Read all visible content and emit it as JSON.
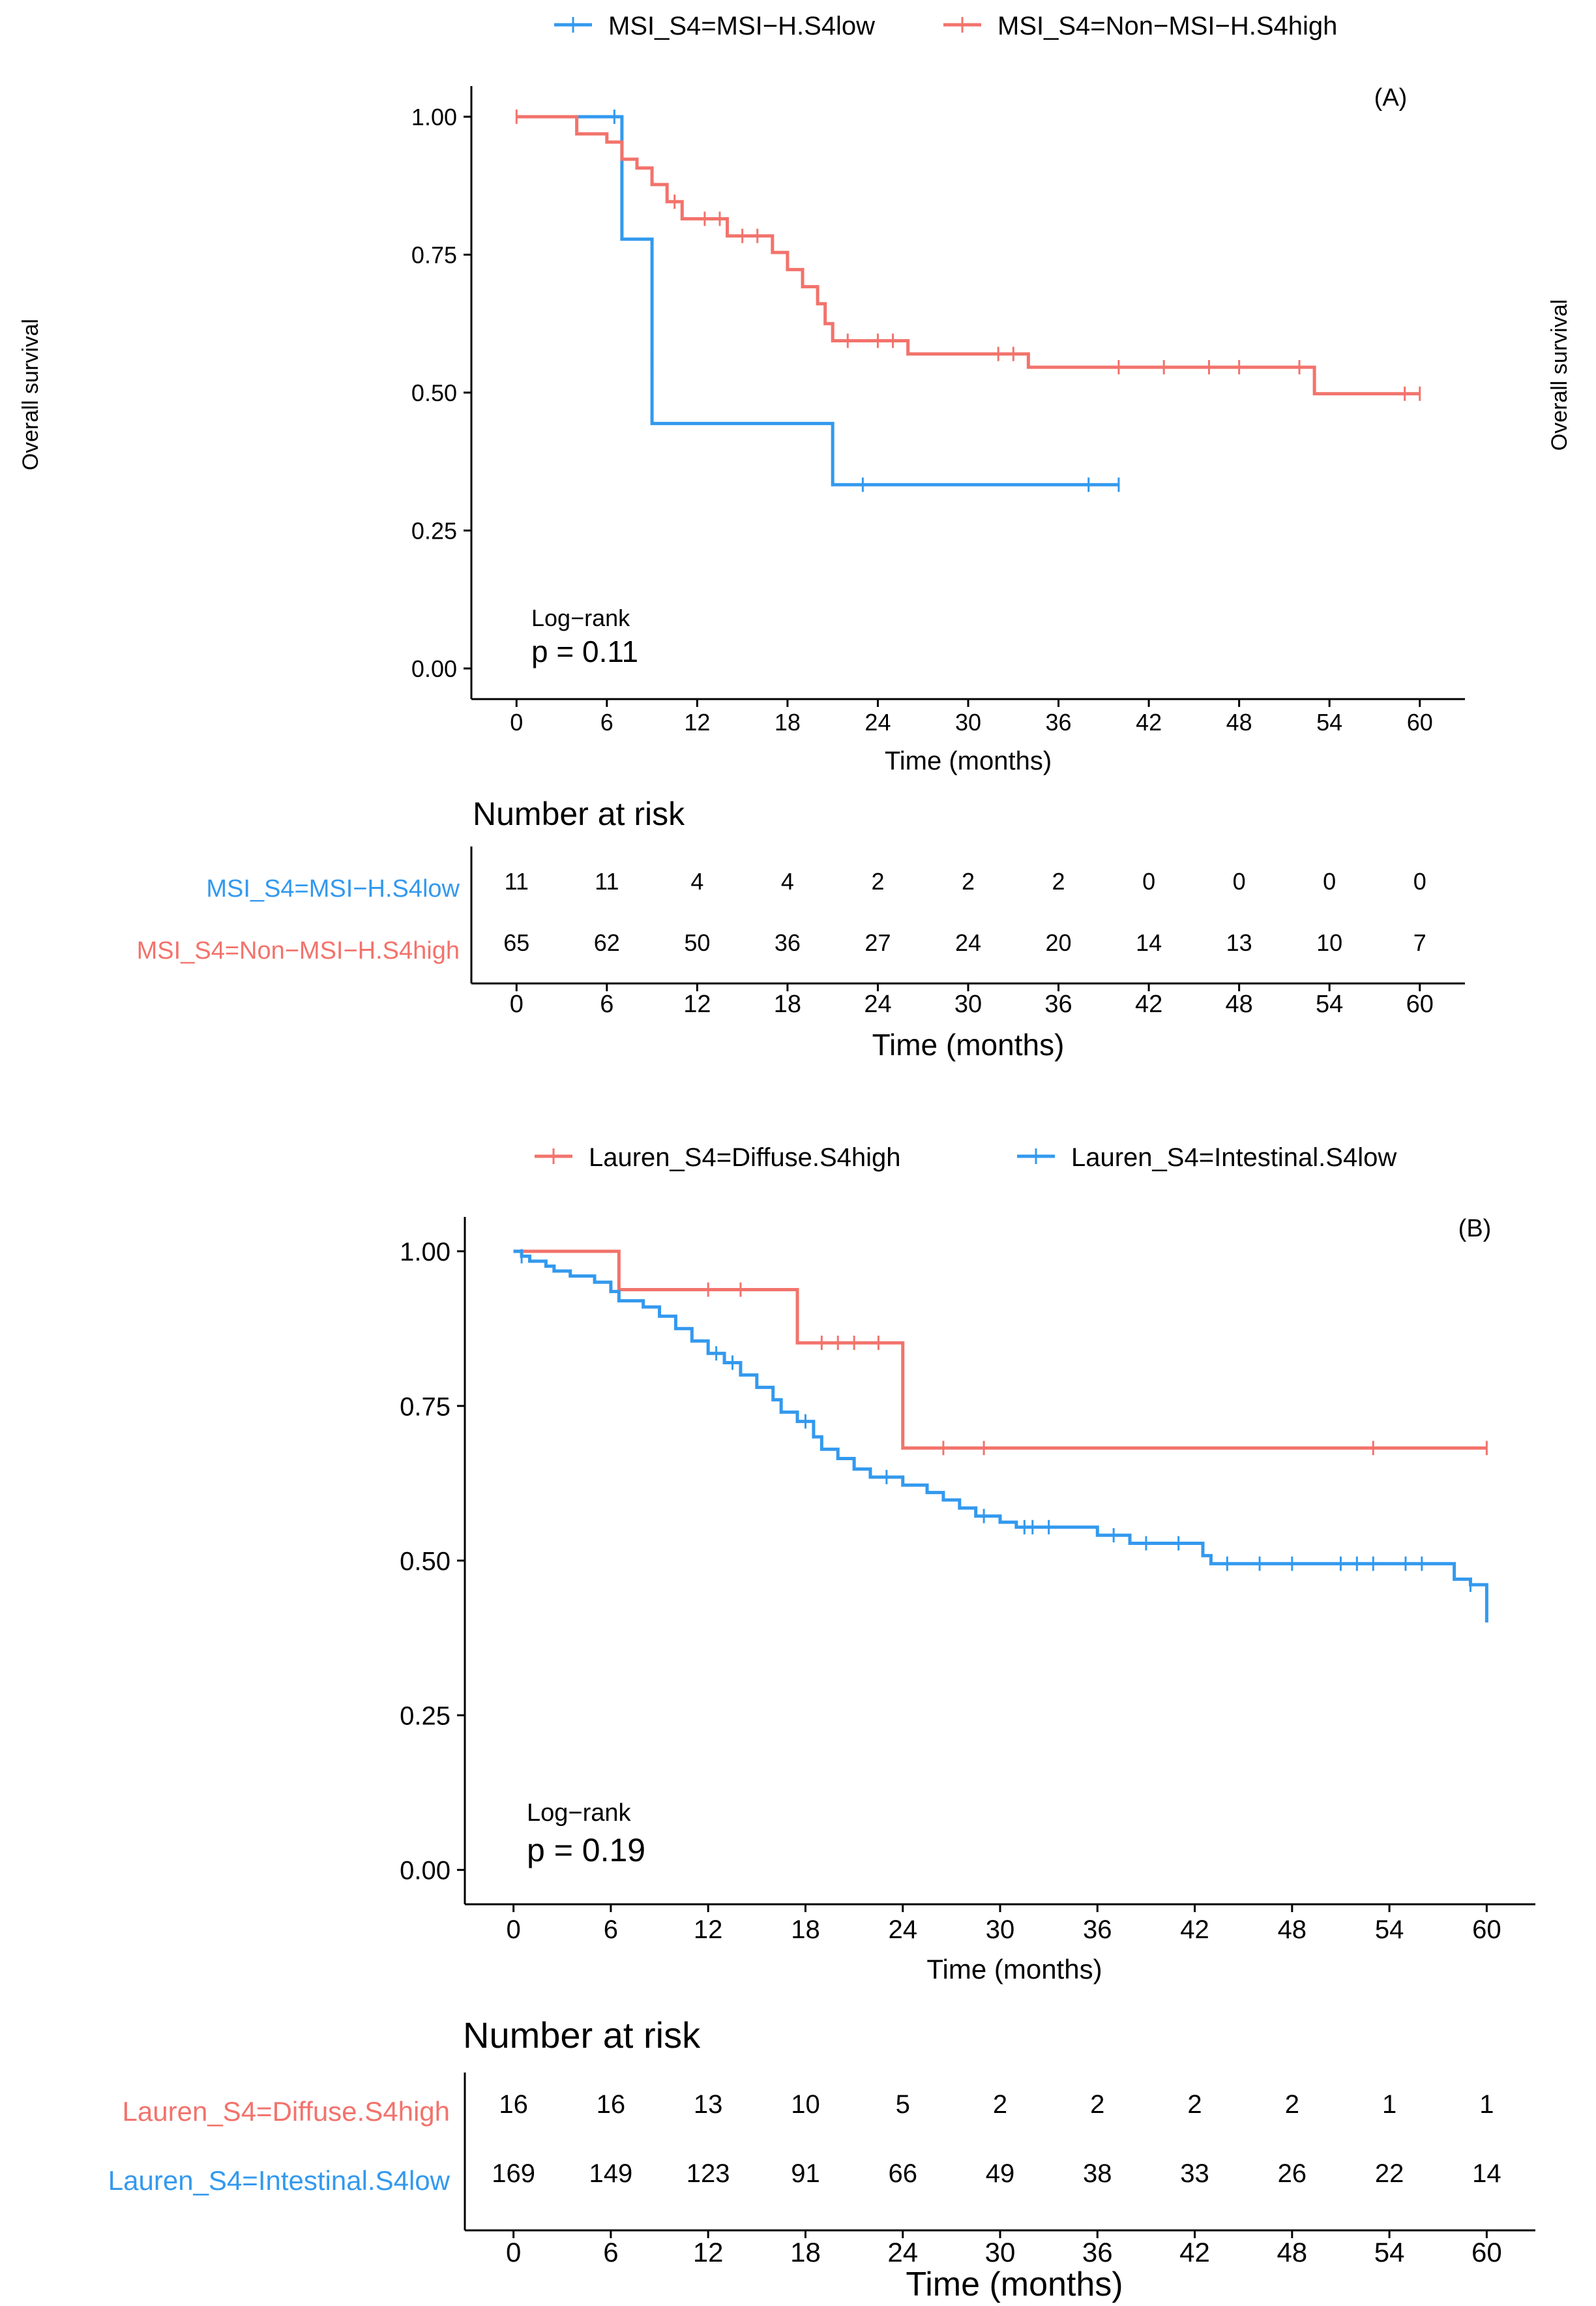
{
  "colors": {
    "low_blue": "#3399ee",
    "high_red": "#f2736c"
  },
  "chart_data": [
    {
      "type": "line",
      "subtype": "kaplan-meier",
      "panel_label": "(A)",
      "ylabel": "Overall survival",
      "right_ylabel": "Overall survival",
      "xlabel": "Time (months)",
      "xlim": [
        -3,
        63
      ],
      "ylim": [
        0,
        1
      ],
      "xticks": [
        0,
        6,
        12,
        18,
        24,
        30,
        36,
        42,
        48,
        54,
        60
      ],
      "yticks": [
        "0.00",
        "0.25",
        "0.50",
        "0.75",
        "1.00"
      ],
      "stat_label": "Log−rank",
      "p_value": "p = 0.11",
      "legend": [
        "MSI_S4=MSI−H.S4low",
        "MSI_S4=Non−MSI−H.S4high"
      ],
      "series": [
        {
          "name": "MSI_S4=MSI−H.S4low",
          "color": "#3399ee",
          "steps": [
            [
              0,
              1.0
            ],
            [
              7.0,
              0.778
            ],
            [
              9.0,
              0.444
            ],
            [
              21.0,
              0.333
            ],
            [
              40.0,
              0.333
            ]
          ],
          "censors": [
            [
              6.5,
              1.0
            ],
            [
              9.0,
              0.556
            ],
            [
              23.0,
              0.333
            ],
            [
              38.0,
              0.333
            ],
            [
              40.0,
              0.333
            ]
          ]
        },
        {
          "name": "MSI_S4=Non−MSI−H.S4high",
          "color": "#f2736c",
          "steps": [
            [
              0,
              1.0
            ],
            [
              4.0,
              0.969
            ],
            [
              6.0,
              0.954
            ],
            [
              7.0,
              0.923
            ],
            [
              8.0,
              0.907
            ],
            [
              9.0,
              0.877
            ],
            [
              10.0,
              0.846
            ],
            [
              11.0,
              0.815
            ],
            [
              14.0,
              0.784
            ],
            [
              17.0,
              0.754
            ],
            [
              18.0,
              0.723
            ],
            [
              19.0,
              0.692
            ],
            [
              20.0,
              0.661
            ],
            [
              20.5,
              0.625
            ],
            [
              21.0,
              0.594
            ],
            [
              26.0,
              0.57
            ],
            [
              34.0,
              0.546
            ],
            [
              53.0,
              0.498
            ],
            [
              60.0,
              0.498
            ]
          ],
          "censors": [
            [
              0,
              1.0
            ],
            [
              10.5,
              0.846
            ],
            [
              12.5,
              0.815
            ],
            [
              13.5,
              0.815
            ],
            [
              15.0,
              0.784
            ],
            [
              16.0,
              0.784
            ],
            [
              22.0,
              0.594
            ],
            [
              24.0,
              0.594
            ],
            [
              25.0,
              0.594
            ],
            [
              32.0,
              0.57
            ],
            [
              33.0,
              0.57
            ],
            [
              40.0,
              0.546
            ],
            [
              43.0,
              0.546
            ],
            [
              46.0,
              0.546
            ],
            [
              48.0,
              0.546
            ],
            [
              52.0,
              0.546
            ],
            [
              59.0,
              0.498
            ],
            [
              60.0,
              0.498
            ]
          ]
        }
      ],
      "risk_table": {
        "title": "Number at risk",
        "xlabel": "Time (months)",
        "rows": [
          {
            "label": "MSI_S4=MSI−H.S4low",
            "color": "#3399ee",
            "values": [
              "11",
              "11",
              "4",
              "4",
              "2",
              "2",
              "2",
              "0",
              "0",
              "0",
              "0"
            ]
          },
          {
            "label": "MSI_S4=Non−MSI−H.S4high",
            "color": "#f2736c",
            "values": [
              "65",
              "62",
              "50",
              "36",
              "27",
              "24",
              "20",
              "14",
              "13",
              "10",
              "7"
            ]
          }
        ]
      }
    },
    {
      "type": "line",
      "subtype": "kaplan-meier",
      "panel_label": "(B)",
      "xlabel": "Time (months)",
      "xlim": [
        -3,
        63
      ],
      "ylim": [
        0,
        1
      ],
      "xticks": [
        0,
        6,
        12,
        18,
        24,
        30,
        36,
        42,
        48,
        54,
        60
      ],
      "yticks": [
        "0.00",
        "0.25",
        "0.50",
        "0.75",
        "1.00"
      ],
      "stat_label": "Log−rank",
      "p_value": "p = 0.19",
      "legend": [
        "Lauren_S4=Diffuse.S4high",
        "Lauren_S4=Intestinal.S4low"
      ],
      "series": [
        {
          "name": "Lauren_S4=Diffuse.S4high",
          "color": "#f2736c",
          "steps": [
            [
              0,
              1.0
            ],
            [
              6.5,
              0.938
            ],
            [
              17.5,
              0.852
            ],
            [
              24.0,
              0.682
            ],
            [
              60.0,
              0.682
            ]
          ],
          "censors": [
            [
              12.0,
              0.938
            ],
            [
              14.0,
              0.938
            ],
            [
              19.0,
              0.852
            ],
            [
              20.0,
              0.852
            ],
            [
              21.0,
              0.852
            ],
            [
              22.5,
              0.852
            ],
            [
              26.5,
              0.682
            ],
            [
              29.0,
              0.682
            ],
            [
              53.0,
              0.682
            ],
            [
              60.0,
              0.682
            ]
          ]
        },
        {
          "name": "Lauren_S4=Intestinal.S4low",
          "color": "#3399ee",
          "steps": [
            [
              0,
              1.0
            ],
            [
              0.5,
              0.992
            ],
            [
              1.0,
              0.984
            ],
            [
              2.0,
              0.976
            ],
            [
              2.5,
              0.968
            ],
            [
              3.5,
              0.96
            ],
            [
              5.0,
              0.95
            ],
            [
              6.0,
              0.935
            ],
            [
              6.5,
              0.92
            ],
            [
              8.0,
              0.91
            ],
            [
              9.0,
              0.895
            ],
            [
              10.0,
              0.875
            ],
            [
              11.0,
              0.855
            ],
            [
              12.0,
              0.835
            ],
            [
              13.0,
              0.82
            ],
            [
              14.0,
              0.8
            ],
            [
              15.0,
              0.78
            ],
            [
              16.0,
              0.76
            ],
            [
              16.5,
              0.74
            ],
            [
              17.5,
              0.725
            ],
            [
              18.5,
              0.7
            ],
            [
              19.0,
              0.68
            ],
            [
              20.0,
              0.665
            ],
            [
              21.0,
              0.648
            ],
            [
              22.0,
              0.635
            ],
            [
              24.0,
              0.622
            ],
            [
              25.5,
              0.61
            ],
            [
              26.5,
              0.598
            ],
            [
              27.5,
              0.585
            ],
            [
              28.5,
              0.572
            ],
            [
              30.0,
              0.562
            ],
            [
              31.0,
              0.554
            ],
            [
              36.0,
              0.541
            ],
            [
              38.0,
              0.528
            ],
            [
              42.5,
              0.508
            ],
            [
              43.0,
              0.495
            ],
            [
              58.0,
              0.47
            ],
            [
              59.0,
              0.461
            ],
            [
              60.0,
              0.4
            ]
          ],
          "censors": [
            [
              0.5,
              0.992
            ],
            [
              12.5,
              0.835
            ],
            [
              13.5,
              0.82
            ],
            [
              18.0,
              0.725
            ],
            [
              23.0,
              0.635
            ],
            [
              29.0,
              0.572
            ],
            [
              31.5,
              0.554
            ],
            [
              32.0,
              0.554
            ],
            [
              33.0,
              0.554
            ],
            [
              37.0,
              0.541
            ],
            [
              39.0,
              0.528
            ],
            [
              41.0,
              0.528
            ],
            [
              44.0,
              0.495
            ],
            [
              46.0,
              0.495
            ],
            [
              48.0,
              0.495
            ],
            [
              51.0,
              0.495
            ],
            [
              52.0,
              0.495
            ],
            [
              53.0,
              0.495
            ],
            [
              55.0,
              0.495
            ],
            [
              56.0,
              0.495
            ],
            [
              59.0,
              0.461
            ],
            [
              60.0,
              0.43
            ]
          ]
        }
      ],
      "risk_table": {
        "title": "Number at risk",
        "xlabel": "Time (months)",
        "rows": [
          {
            "label": "Lauren_S4=Diffuse.S4high",
            "color": "#f2736c",
            "values": [
              "16",
              "16",
              "13",
              "10",
              "5",
              "2",
              "2",
              "2",
              "2",
              "1",
              "1"
            ]
          },
          {
            "label": "Lauren_S4=Intestinal.S4low",
            "color": "#3399ee",
            "values": [
              "169",
              "149",
              "123",
              "91",
              "66",
              "49",
              "38",
              "33",
              "26",
              "22",
              "14"
            ]
          }
        ]
      }
    }
  ]
}
